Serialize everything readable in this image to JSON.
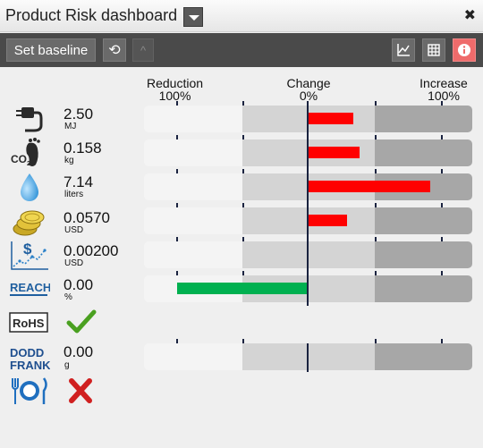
{
  "window": {
    "title": "Product Risk dashboard"
  },
  "toolbar": {
    "set_baseline_label": "Set baseline",
    "refresh_glyph": "⟲",
    "collapse_glyph": "^"
  },
  "header": {
    "reduction_label": "Reduction",
    "reduction_pct": "100%",
    "change_label": "Change",
    "change_pct": "0%",
    "increase_label": "Increase",
    "increase_pct": "100%"
  },
  "rows": [
    {
      "icon": "energy-plug-icon",
      "value": "2.50",
      "unit": "MJ",
      "change": 0.35,
      "color": "#ff0000"
    },
    {
      "icon": "co2-footprint-icon",
      "value": "0.158",
      "unit": "kg",
      "change": 0.4,
      "color": "#ff0000"
    },
    {
      "icon": "water-drop-icon",
      "value": "7.14",
      "unit": "liters",
      "change": 0.94,
      "color": "#ff0000"
    },
    {
      "icon": "coins-icon",
      "value": "0.0570",
      "unit": "USD",
      "change": 0.3,
      "color": "#ff0000"
    },
    {
      "icon": "dollar-chart-icon",
      "value": "0.00200",
      "unit": "USD",
      "change": 0,
      "color": "#ff0000"
    },
    {
      "icon": "reach-icon",
      "icon_text": "REACH",
      "value": "0.00",
      "unit": "%",
      "change": -1.0,
      "color": "#00b050"
    }
  ],
  "rohs": {
    "icon_text": "RoHS",
    "status_icon": "check-icon"
  },
  "dodd_frank": {
    "icon_text_1": "DODD",
    "icon_text_2": "FRANK",
    "value": "0.00",
    "unit": "g",
    "change": 0
  },
  "food": {
    "icon": "food-plate-icon",
    "status_icon": "cross-icon"
  },
  "colors": {
    "increase": "#ff0000",
    "reduction": "#00b050",
    "toolbar": "#4a4a4a"
  }
}
